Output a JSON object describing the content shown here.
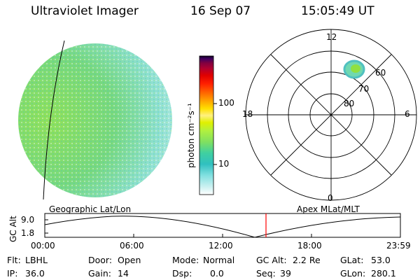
{
  "header": {
    "instrument": "Ultraviolet Imager",
    "date": "16 Sep 07",
    "time": "15:05:49 UT"
  },
  "colorbar": {
    "label": "photon cm⁻²s⁻¹",
    "tick_labels": [
      "100",
      "10"
    ],
    "tick_values": [
      100,
      10
    ],
    "scale": "log",
    "colors": [
      "#ffffff",
      "#c8f0f0",
      "#80e0e0",
      "#30c0c0",
      "#40d0a0",
      "#80e060",
      "#b0f040",
      "#e0f000",
      "#fff080",
      "#ffe000",
      "#ffa000",
      "#ff6000",
      "#ff2000",
      "#e00000",
      "#b00030",
      "#800040",
      "#400060",
      "#100020"
    ]
  },
  "globe": {
    "label": "Geographic Lat/Lon",
    "dominant_colors": [
      "#80e060",
      "#a0e8d0",
      "#c8f0f0"
    ]
  },
  "polar": {
    "label": "Apex MLat/MLT",
    "mlt_labels": [
      "12",
      "18",
      "6",
      "0"
    ],
    "mlat_labels": [
      "60",
      "70",
      "80"
    ],
    "oval_colors": [
      "#60d0c0",
      "#90e040"
    ]
  },
  "altitude_plot": {
    "ylabel": "GC Alt",
    "yticks": [
      "9.0",
      "1.8"
    ],
    "xticks": [
      "00:00",
      "06:00",
      "12:00",
      "18:00",
      "23:59"
    ],
    "current_marker_color": "#ff0000"
  },
  "status": {
    "flt_label": "Flt:",
    "flt_value": "LBHL",
    "ip_label": "IP:",
    "ip_value": "36.0",
    "door_label": "Door:",
    "door_value": "Open",
    "gain_label": "Gain:",
    "gain_value": "14",
    "mode_label": "Mode:",
    "mode_value": "Normal",
    "dsp_label": "Dsp:",
    "dsp_value": "0.0",
    "gcalt_label": "GC Alt:",
    "gcalt_value": "2.2 Re",
    "seq_label": "Seq:",
    "seq_value": "39",
    "glat_label": "GLat:",
    "glat_value": "53.0",
    "glon_label": "GLon:",
    "glon_value": "280.1"
  }
}
